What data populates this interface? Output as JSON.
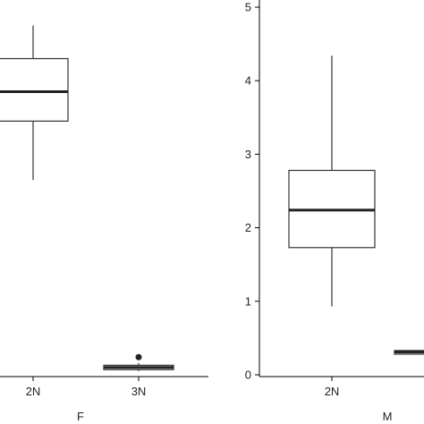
{
  "chart_data": [
    {
      "type": "box",
      "facet_label": "F",
      "categories": [
        "2N",
        "3N"
      ],
      "boxes": [
        {
          "category": "2N",
          "min": 2.65,
          "q1": 3.45,
          "median": 3.85,
          "q3": 4.3,
          "max": 4.75,
          "outliers": []
        },
        {
          "category": "3N",
          "min": 0.05,
          "q1": 0.07,
          "median": 0.1,
          "q3": 0.13,
          "max": 0.16,
          "outliers": [
            0.24
          ]
        }
      ]
    },
    {
      "type": "box",
      "facet_label": "M",
      "categories": [
        "2N",
        "3N"
      ],
      "ylim": [
        0,
        5
      ],
      "yticks": [
        "0",
        "1",
        "2",
        "3",
        "4",
        "5"
      ],
      "boxes": [
        {
          "category": "2N",
          "min": 0.93,
          "q1": 1.73,
          "median": 2.24,
          "q3": 2.78,
          "max": 4.34,
          "outliers": []
        },
        {
          "category": "3N",
          "min": 0.28,
          "q1": 0.28,
          "median": 0.31,
          "q3": 0.33,
          "max": 0.33,
          "outliers": []
        }
      ]
    }
  ]
}
